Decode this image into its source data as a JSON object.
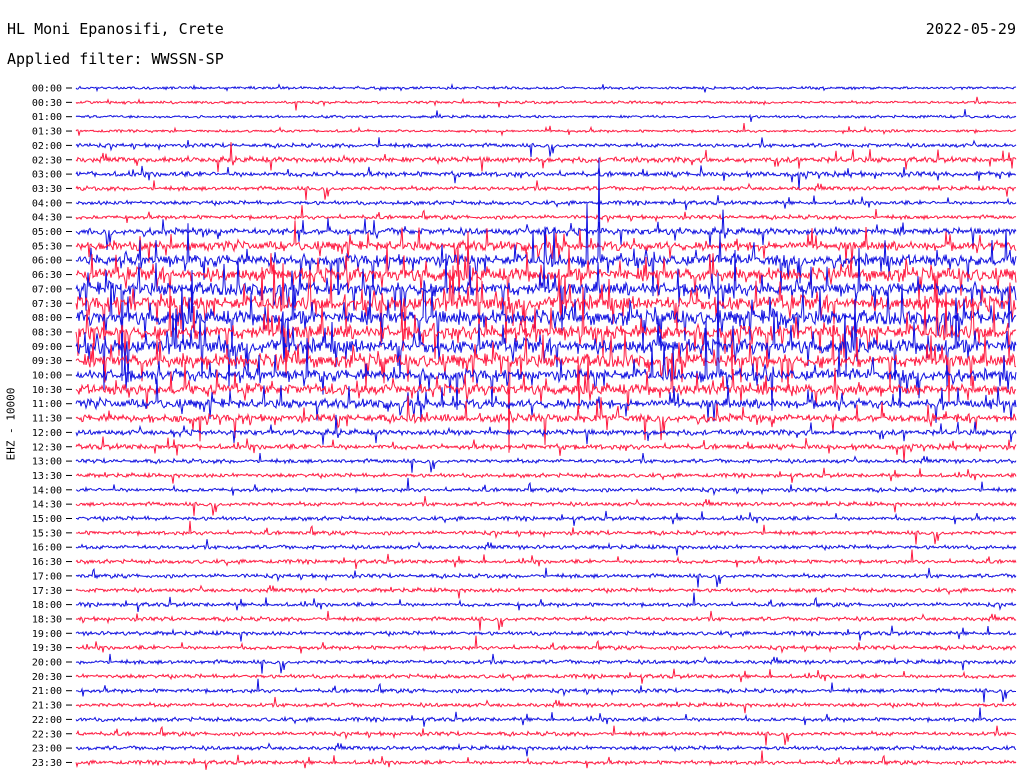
{
  "header": {
    "station": "HL Moni Epanosifi, Crete",
    "filter": "Applied filter: WWSSN-SP",
    "date": "2022-05-29",
    "channel": "EHZ - 10000"
  },
  "colors": {
    "blue": "#1010e0",
    "red": "#ff1a40"
  },
  "chart_data": {
    "type": "line",
    "title": "HL Moni Epanosifi, Crete",
    "subtitle": "Applied filter: WWSSN-SP",
    "date": "2022-05-29",
    "ylabel": "EHZ - 10000",
    "xlabel": "",
    "grid": false,
    "row_labels": [
      "00:00",
      "00:30",
      "01:00",
      "01:30",
      "02:00",
      "02:30",
      "03:00",
      "03:30",
      "04:00",
      "04:30",
      "05:00",
      "05:30",
      "06:00",
      "06:30",
      "07:00",
      "07:30",
      "08:00",
      "08:30",
      "09:00",
      "09:30",
      "10:00",
      "10:30",
      "11:00",
      "11:30",
      "12:00",
      "12:30",
      "13:00",
      "13:30",
      "14:00",
      "14:30",
      "15:00",
      "15:30",
      "16:00",
      "16:30",
      "17:00",
      "17:30",
      "18:00",
      "18:30",
      "19:00",
      "19:30",
      "20:00",
      "20:30",
      "21:00",
      "21:30",
      "22:00",
      "22:30",
      "23:00",
      "23:30"
    ],
    "row_colors_alternate": [
      "blue",
      "red"
    ],
    "activity_level": [
      1,
      1,
      1,
      1,
      2,
      3,
      3,
      2,
      2,
      2,
      4,
      6,
      8,
      9,
      9,
      10,
      10,
      10,
      10,
      9,
      8,
      7,
      6,
      5,
      3,
      3,
      2,
      2,
      2,
      2,
      2,
      2,
      2,
      2,
      2,
      2,
      2,
      2,
      2,
      2,
      2,
      2,
      2,
      2,
      2,
      2,
      2,
      2
    ]
  }
}
